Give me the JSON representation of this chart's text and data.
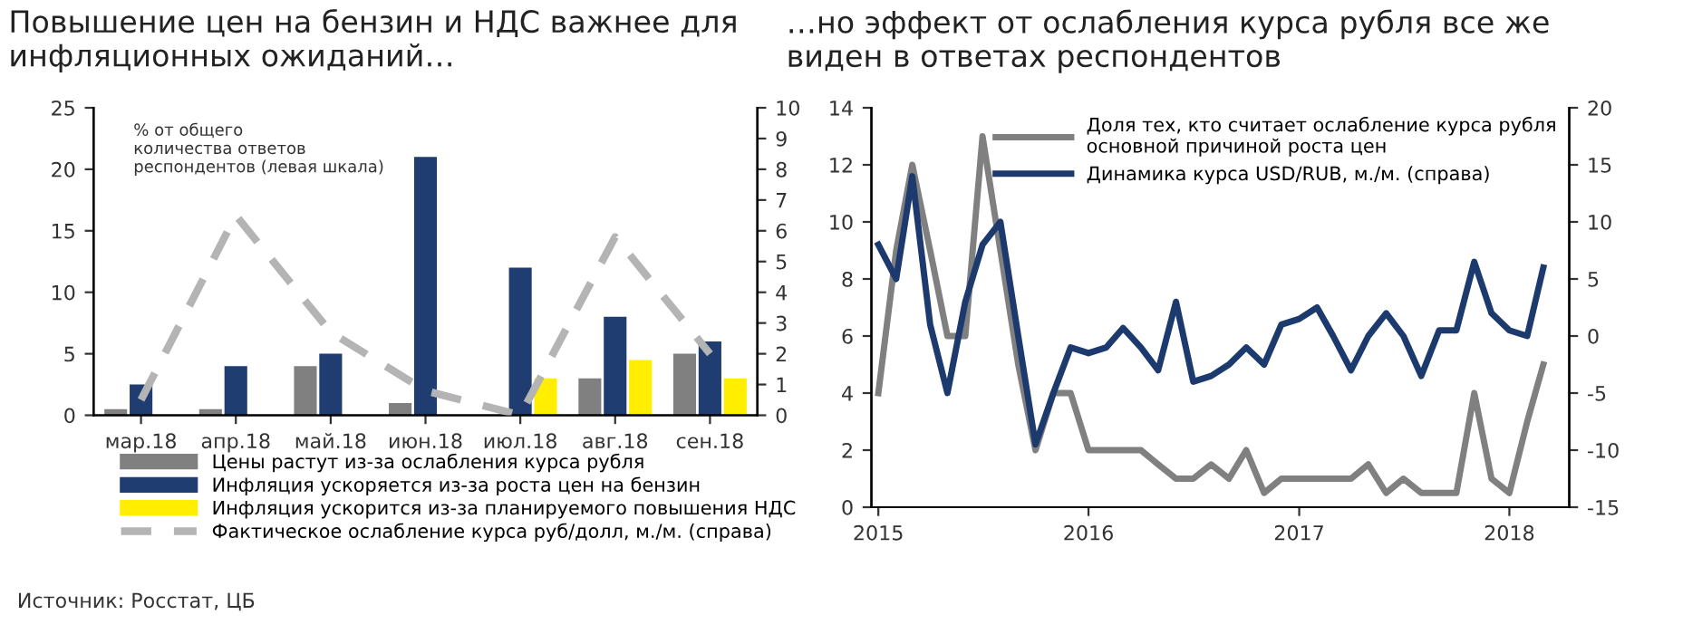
{
  "chart_data": [
    {
      "type": "bar",
      "title": "Повышение цен на бензин и НДС важнее для\nинфляционных ожиданий…",
      "categories": [
        "мар.18",
        "апр.18",
        "май.18",
        "июн.18",
        "июл.18",
        "авг.18",
        "сен.18"
      ],
      "series": [
        {
          "name": "Цены растут из-за ослабления курса рубля",
          "color": "#808080",
          "values": [
            0.5,
            0.5,
            4,
            1,
            null,
            3,
            5
          ]
        },
        {
          "name": "Инфляция ускоряется из-за роста цен на бензин",
          "color": "#1f3d70",
          "values": [
            2.5,
            4,
            5,
            21,
            12,
            8,
            6
          ]
        },
        {
          "name": "Инфляция ускорится из-за планируемого повышения НДС",
          "color": "#ffee00",
          "values": [
            null,
            null,
            null,
            null,
            3,
            4.5,
            3
          ]
        },
        {
          "name": "Фактическое ослабление курса руб/долл, м./м. (справа)",
          "type": "line",
          "axis": "y2",
          "line_style": "dashed",
          "color": "#b4b4b4",
          "values": [
            0.5,
            6.5,
            2.7,
            0.8,
            0,
            5.8,
            2
          ]
        }
      ],
      "ylim": [
        0,
        25
      ],
      "yticks": [
        0,
        5,
        10,
        15,
        20,
        25
      ],
      "y2lim": [
        0,
        10
      ],
      "y2ticks": [
        0,
        1,
        2,
        3,
        4,
        5,
        6,
        7,
        8,
        9,
        10
      ],
      "legend": "bottom",
      "grid": false,
      "annotations": [
        "% от общего\nколичества ответов\nреспондентов (левая шкала)",
        "Источник: Росстат, ЦБ"
      ]
    },
    {
      "type": "line",
      "title": "…но эффект от ослабления курса рубля все же\nвиден в ответах респондентов",
      "x": [
        "2015-01",
        "2015-02",
        "2015-03",
        "2015-04",
        "2015-05",
        "2015-06",
        "2015-07",
        "2015-08",
        "2015-09",
        "2015-10",
        "2015-11",
        "2015-12",
        "2016-01",
        "2016-02",
        "2016-03",
        "2016-04",
        "2016-05",
        "2016-06",
        "2016-07",
        "2016-08",
        "2016-09",
        "2016-10",
        "2016-11",
        "2016-12",
        "2017-01",
        "2017-02",
        "2017-03",
        "2017-04",
        "2017-05",
        "2017-06",
        "2017-07",
        "2017-08",
        "2017-09",
        "2017-10",
        "2017-11",
        "2017-12",
        "2018-01",
        "2018-02",
        "2018-03"
      ],
      "series": [
        {
          "name": "Доля тех, кто считает ослабление курса рубля\nосновной причиной роста цен",
          "color": "#808080",
          "values": [
            4,
            9,
            12,
            9,
            6,
            6,
            13,
            9,
            5,
            2,
            4,
            4,
            2,
            2,
            2,
            2,
            1.5,
            1,
            1,
            1.5,
            1,
            2,
            0.5,
            1,
            1,
            1,
            1,
            1,
            1.5,
            0.5,
            1,
            0.5,
            0.5,
            0.5,
            4,
            1,
            0.5,
            3,
            5
          ]
        },
        {
          "name": "Динамика курса USD/RUB, м./м. (справа)",
          "axis": "y2",
          "color": "#1c3a6e",
          "values": [
            8,
            5,
            14,
            1,
            -5,
            3,
            8,
            10,
            0,
            -9.5,
            -5,
            -1,
            -1.5,
            -1,
            0.7,
            -1,
            -3,
            3,
            -4,
            -3.5,
            -2.5,
            -1,
            -2.5,
            1,
            1.5,
            2.5,
            0,
            -3,
            0,
            2,
            0,
            -3.5,
            0.5,
            0.5,
            6.5,
            2,
            0.5,
            0,
            6
          ]
        }
      ],
      "xlim": [
        "2014-12-20",
        "2018-04-15"
      ],
      "xticks": [
        {
          "value": "2015-01",
          "label": "2015"
        },
        {
          "value": "2016-01",
          "label": "2016"
        },
        {
          "value": "2017-01",
          "label": "2017"
        },
        {
          "value": "2018-01",
          "label": "2018"
        }
      ],
      "ylim": [
        0,
        14
      ],
      "yticks": [
        0,
        2,
        4,
        6,
        8,
        10,
        12,
        14
      ],
      "y2lim": [
        -15,
        20
      ],
      "y2ticks": [
        -15,
        -10,
        -5,
        0,
        5,
        10,
        15,
        20
      ],
      "legend": "top",
      "grid": false
    }
  ]
}
